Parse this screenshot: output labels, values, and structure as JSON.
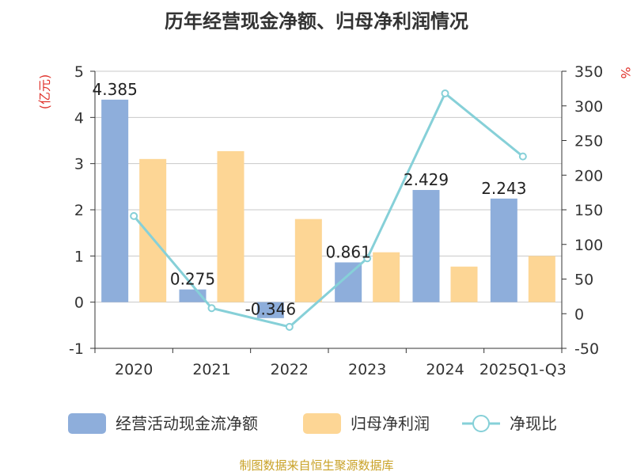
{
  "chart_data": {
    "type": "bar",
    "title": "历年经营现金净额、归母净利润情况",
    "categories": [
      "2020",
      "2021",
      "2022",
      "2023",
      "2024",
      "2025Q1-Q3"
    ],
    "series": [
      {
        "name": "经营活动现金流净额",
        "type": "bar",
        "axis": "left",
        "color": "#8eaedb",
        "values": [
          4.385,
          0.275,
          -0.346,
          0.861,
          2.429,
          2.243
        ],
        "labels": [
          "4.385",
          "0.275",
          "-0.346",
          "0.861",
          "2.429",
          "2.243"
        ]
      },
      {
        "name": "归母净利润",
        "type": "bar",
        "axis": "left",
        "color": "#fdd695",
        "values": [
          3.1,
          3.27,
          1.8,
          1.08,
          0.77,
          1.0
        ]
      },
      {
        "name": "净现比",
        "type": "line",
        "axis": "right",
        "color": "#86d0d8",
        "values": [
          141,
          8,
          -19,
          80,
          318,
          227
        ]
      }
    ],
    "left_axis": {
      "unit": "(亿元)",
      "ylim": [
        -1,
        5
      ],
      "ticks": [
        "-1",
        "0",
        "1",
        "2",
        "3",
        "4",
        "5"
      ]
    },
    "right_axis": {
      "unit": "%",
      "ylim": [
        -50,
        350
      ],
      "ticks": [
        "-50",
        "0",
        "50",
        "100",
        "150",
        "200",
        "250",
        "300",
        "350"
      ]
    },
    "legend_position": "bottom",
    "source": "制图数据来自恒生聚源数据库"
  }
}
